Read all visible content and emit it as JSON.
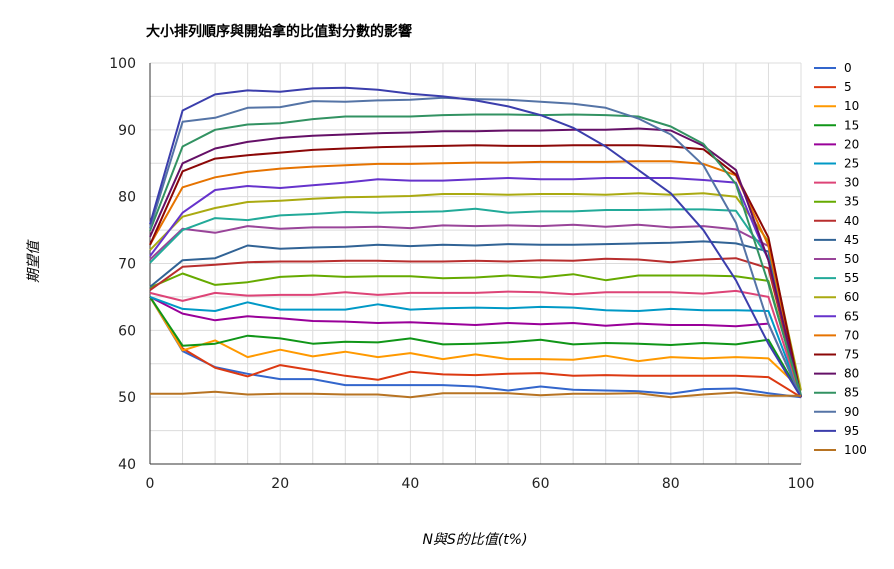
{
  "chart_data": {
    "type": "line",
    "title": "大小排列順序與開始拿的比值對分數的影響",
    "xlabel": "N與S的比值(t%)",
    "ylabel": "期望值",
    "xlim": [
      0,
      100
    ],
    "ylim": [
      40,
      100
    ],
    "x_ticks": [
      "0",
      "20",
      "40",
      "60",
      "80",
      "100"
    ],
    "y_ticks": [
      "40",
      "50",
      "60",
      "70",
      "80",
      "90",
      "100"
    ],
    "grid": "vertical and horizontal",
    "legend_position": "right",
    "x": [
      0,
      5,
      10,
      15,
      20,
      25,
      30,
      35,
      40,
      45,
      50,
      55,
      60,
      65,
      70,
      75,
      80,
      85,
      90,
      95,
      100
    ],
    "series": [
      {
        "name": "0",
        "color": "#3366cc",
        "values": [
          65.0,
          56.9,
          54.5,
          53.5,
          52.7,
          52.7,
          51.8,
          51.8,
          51.8,
          51.8,
          51.6,
          51.0,
          51.6,
          51.1,
          51.0,
          50.9,
          50.5,
          51.2,
          51.3,
          50.6,
          50.0
        ]
      },
      {
        "name": "5",
        "color": "#dc3912",
        "values": [
          65.0,
          57.3,
          54.4,
          53.1,
          54.8,
          54.0,
          53.2,
          52.6,
          53.8,
          53.4,
          53.3,
          53.5,
          53.6,
          53.2,
          53.3,
          53.2,
          53.2,
          53.2,
          53.2,
          53.0,
          50.0
        ]
      },
      {
        "name": "10",
        "color": "#ff9900",
        "values": [
          65.0,
          57.0,
          58.5,
          56.0,
          57.1,
          56.1,
          56.8,
          56.0,
          56.6,
          55.7,
          56.4,
          55.7,
          55.7,
          55.6,
          56.2,
          55.4,
          56.0,
          55.8,
          56.0,
          55.8,
          51.2
        ]
      },
      {
        "name": "15",
        "color": "#109618",
        "values": [
          65.0,
          57.7,
          58.0,
          59.2,
          58.8,
          58.0,
          58.3,
          58.2,
          58.8,
          57.9,
          58.0,
          58.2,
          58.6,
          57.9,
          58.1,
          58.0,
          57.8,
          58.1,
          57.9,
          58.6,
          50.2
        ]
      },
      {
        "name": "20",
        "color": "#990099",
        "values": [
          65.0,
          62.5,
          61.5,
          62.1,
          61.8,
          61.4,
          61.3,
          61.1,
          61.2,
          61.0,
          60.8,
          61.1,
          60.9,
          61.1,
          60.7,
          61.0,
          60.8,
          60.8,
          60.6,
          61.0,
          50.0
        ]
      },
      {
        "name": "25",
        "color": "#0099c6",
        "values": [
          65.0,
          63.2,
          62.9,
          64.2,
          63.1,
          63.1,
          63.1,
          63.9,
          63.1,
          63.3,
          63.4,
          63.3,
          63.5,
          63.4,
          63.0,
          62.9,
          63.2,
          63.0,
          63.0,
          62.9,
          50.0
        ]
      },
      {
        "name": "30",
        "color": "#dd4477",
        "values": [
          65.6,
          64.4,
          65.6,
          65.2,
          65.3,
          65.3,
          65.7,
          65.3,
          65.6,
          65.6,
          65.6,
          65.8,
          65.7,
          65.4,
          65.7,
          65.7,
          65.7,
          65.5,
          65.9,
          65.0,
          50.0
        ]
      },
      {
        "name": "35",
        "color": "#66aa00",
        "values": [
          66.4,
          68.5,
          66.8,
          67.2,
          68.0,
          68.2,
          68.0,
          68.1,
          68.1,
          67.8,
          67.9,
          68.2,
          67.9,
          68.4,
          67.5,
          68.2,
          68.2,
          68.2,
          68.1,
          67.4,
          50.0
        ]
      },
      {
        "name": "40",
        "color": "#b82e2e",
        "values": [
          66.0,
          69.5,
          69.8,
          70.2,
          70.3,
          70.3,
          70.4,
          70.4,
          70.3,
          70.3,
          70.4,
          70.3,
          70.5,
          70.4,
          70.7,
          70.6,
          70.2,
          70.6,
          70.8,
          69.3,
          50.0
        ]
      },
      {
        "name": "45",
        "color": "#316395",
        "values": [
          66.5,
          70.5,
          70.8,
          72.7,
          72.2,
          72.4,
          72.5,
          72.8,
          72.6,
          72.8,
          72.7,
          72.9,
          72.8,
          72.8,
          72.9,
          73.0,
          73.1,
          73.3,
          73.0,
          71.8,
          50.0
        ]
      },
      {
        "name": "50",
        "color": "#994499",
        "values": [
          70.6,
          75.2,
          74.6,
          75.6,
          75.2,
          75.4,
          75.4,
          75.5,
          75.3,
          75.7,
          75.6,
          75.7,
          75.6,
          75.8,
          75.5,
          75.8,
          75.4,
          75.6,
          75.1,
          72.6,
          50.0
        ]
      },
      {
        "name": "55",
        "color": "#22aa99",
        "values": [
          70.1,
          75.0,
          76.8,
          76.5,
          77.2,
          77.4,
          77.7,
          77.6,
          77.7,
          77.8,
          78.2,
          77.6,
          77.8,
          77.8,
          78.0,
          78.0,
          78.1,
          78.1,
          77.9,
          70.9,
          50.0
        ]
      },
      {
        "name": "60",
        "color": "#aaaa11",
        "values": [
          72.0,
          77.0,
          78.3,
          79.2,
          79.4,
          79.7,
          79.9,
          80.0,
          80.1,
          80.4,
          80.4,
          80.3,
          80.4,
          80.4,
          80.3,
          80.5,
          80.3,
          80.5,
          80.0,
          73.3,
          51.0
        ]
      },
      {
        "name": "65",
        "color": "#6633cc",
        "values": [
          71.1,
          77.6,
          81.0,
          81.6,
          81.3,
          81.7,
          82.1,
          82.6,
          82.4,
          82.4,
          82.6,
          82.8,
          82.6,
          82.6,
          82.8,
          82.8,
          82.8,
          82.5,
          82.1,
          70.5,
          50.0
        ]
      },
      {
        "name": "70",
        "color": "#e67300",
        "values": [
          72.8,
          81.4,
          82.9,
          83.7,
          84.2,
          84.5,
          84.7,
          84.9,
          84.9,
          85.0,
          85.1,
          85.1,
          85.2,
          85.2,
          85.2,
          85.3,
          85.3,
          84.9,
          83.2,
          72.7,
          50.0
        ]
      },
      {
        "name": "75",
        "color": "#8b0707",
        "values": [
          72.8,
          83.8,
          85.7,
          86.2,
          86.6,
          87.0,
          87.2,
          87.4,
          87.5,
          87.6,
          87.7,
          87.6,
          87.6,
          87.7,
          87.7,
          87.7,
          87.5,
          87.1,
          83.3,
          73.9,
          50.0
        ]
      },
      {
        "name": "80",
        "color": "#651067",
        "values": [
          74.0,
          85.0,
          87.2,
          88.2,
          88.8,
          89.1,
          89.3,
          89.5,
          89.6,
          89.8,
          89.8,
          89.9,
          89.9,
          90.0,
          90.0,
          90.2,
          89.9,
          87.6,
          84.0,
          70.5,
          50.0
        ]
      },
      {
        "name": "85",
        "color": "#329262",
        "values": [
          74.9,
          87.5,
          90.0,
          90.8,
          91.0,
          91.6,
          92.0,
          92.0,
          92.0,
          92.2,
          92.3,
          92.3,
          92.2,
          92.3,
          92.2,
          92.0,
          90.5,
          87.9,
          81.9,
          67.0,
          50.3
        ]
      },
      {
        "name": "90",
        "color": "#5574a6",
        "values": [
          75.3,
          91.2,
          91.8,
          93.3,
          93.4,
          94.3,
          94.2,
          94.4,
          94.5,
          94.8,
          94.6,
          94.5,
          94.2,
          93.9,
          93.3,
          91.7,
          89.3,
          84.7,
          76.1,
          61.0,
          50.0
        ]
      },
      {
        "name": "95",
        "color": "#3b3eac",
        "values": [
          75.9,
          92.9,
          95.3,
          95.9,
          95.7,
          96.2,
          96.3,
          96.0,
          95.4,
          95.0,
          94.4,
          93.5,
          92.2,
          90.3,
          87.5,
          84.0,
          80.5,
          75.0,
          67.5,
          58.0,
          50.0
        ]
      },
      {
        "name": "100",
        "color": "#b77322",
        "values": [
          50.5,
          50.5,
          50.8,
          50.4,
          50.5,
          50.5,
          50.4,
          50.4,
          50.0,
          50.6,
          50.6,
          50.6,
          50.3,
          50.5,
          50.5,
          50.6,
          50.0,
          50.4,
          50.7,
          50.2,
          50.2
        ]
      }
    ]
  }
}
